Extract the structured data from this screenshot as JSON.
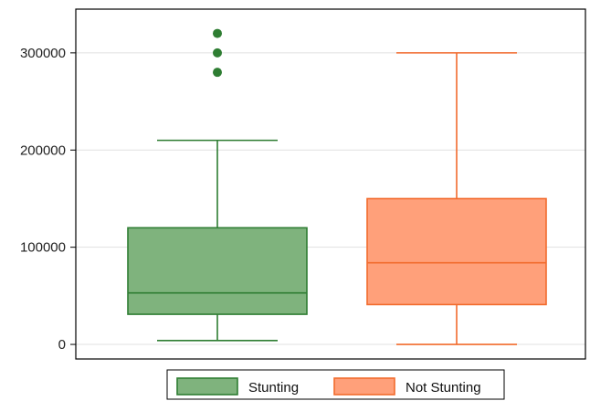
{
  "chart_data": {
    "type": "boxplot",
    "title": "",
    "xlabel": "",
    "ylabel": "",
    "ylim": [
      -15000,
      345000
    ],
    "yticks": [
      0,
      100000,
      200000,
      300000
    ],
    "ytick_labels": [
      "0",
      "100000",
      "200000",
      "300000"
    ],
    "grid": true,
    "legend_position": "bottom",
    "series": [
      {
        "name": "Stunting",
        "color": "#7fb37d",
        "edge_color": "#2e7d32",
        "whisker_low": 4000,
        "q1": 31000,
        "median": 53000,
        "q3": 120000,
        "whisker_high": 210000,
        "outliers": [
          280000,
          300000,
          320000
        ]
      },
      {
        "name": "Not Stunting",
        "color": "#ffa07a",
        "edge_color": "#f26b2d",
        "whisker_low": 0,
        "q1": 41000,
        "median": 84000,
        "q3": 150000,
        "whisker_high": 300000,
        "outliers": []
      }
    ]
  }
}
